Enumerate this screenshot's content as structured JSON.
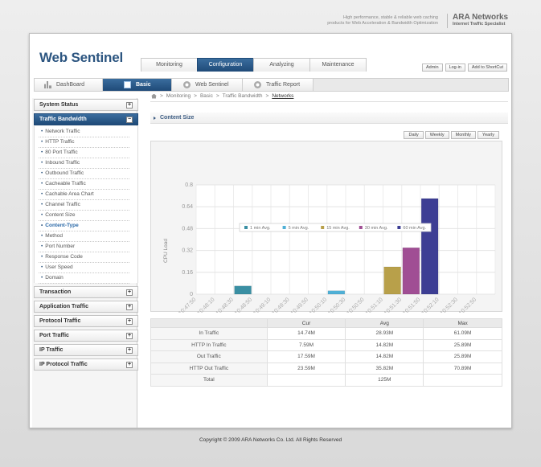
{
  "header": {
    "tagline_line1": "High performance, stable & reliable web caching",
    "tagline_line2": "products for Web Acceleration & Bandwidth Optimization",
    "brand_name": "ARA Networks",
    "brand_sub": "Internet Traffic Specialist",
    "logo": "Web Sentinel"
  },
  "main_tabs": [
    {
      "label": "Monitoring"
    },
    {
      "label": "Configuration"
    },
    {
      "label": "Analyzing"
    },
    {
      "label": "Maintenance"
    }
  ],
  "top_links": [
    {
      "label": "Admin"
    },
    {
      "label": "Log-in"
    },
    {
      "label": "Add to ShortCut"
    }
  ],
  "sub_tabs": [
    {
      "label": "DashBoard",
      "icon": "bar-chart-icon"
    },
    {
      "label": "Basic",
      "icon": "basic-icon"
    },
    {
      "label": "Web Sentinel",
      "icon": "web-sentinel-icon"
    },
    {
      "label": "Traffic Report",
      "icon": "traffic-report-icon"
    }
  ],
  "sidebar": {
    "system_status": "System Status",
    "traffic_bandwidth": "Traffic Bandwidth",
    "items": [
      "Network Traffic",
      "HTTP Traffic",
      "80 Port Traffic",
      "Inbound Traffic",
      "Outbound Traffic",
      "Cacheable Traffic",
      "Cachable Area Chart",
      "Channel Traffic",
      "Content Size",
      "Content-Type",
      "Method",
      "Port Number",
      "Response Code",
      "User Speed",
      "Domain"
    ],
    "groups": [
      "Transaction",
      "Application Traffic",
      "Protocol Traffic",
      "Port Traffic",
      "IP Traffic",
      "IP Protocol Traffic"
    ],
    "plus": "+",
    "minus": "−"
  },
  "breadcrumb": {
    "items": [
      "Monitoring",
      "Basic",
      "Traffic Bandwidth"
    ],
    "current": "Networks",
    "sep": ">"
  },
  "section_title": "Content Size",
  "period_buttons": [
    "Daily",
    "Weekly",
    "Monthly",
    "Yearly"
  ],
  "chart_data": {
    "type": "bar",
    "ylabel": "CPU Load",
    "ylim": [
      0,
      0.8
    ],
    "yticks": [
      "0",
      "0.16",
      "0.32",
      "0.48",
      "0.64",
      "0.8"
    ],
    "categories": [
      "10:47:50",
      "10:48:10",
      "10:48:30",
      "10:48:50",
      "10:49:10",
      "10:49:30",
      "10:49:50",
      "10:50:10",
      "10:50:30",
      "10:50:50",
      "10:51:10",
      "10:51:30",
      "10:51:50",
      "10:52:10",
      "10:52:30",
      "10:52:50"
    ],
    "series": [
      {
        "name": "1 min Avg.",
        "color": "#3a8fa3",
        "values": [
          0,
          0,
          0.06,
          0,
          0,
          0,
          0,
          0,
          0,
          0,
          0,
          0,
          0,
          0,
          0,
          0
        ]
      },
      {
        "name": "5 min Avg.",
        "color": "#4fb0d6",
        "values": [
          0,
          0,
          0,
          0,
          0,
          0,
          0,
          0.025,
          0,
          0,
          0,
          0,
          0,
          0,
          0,
          0
        ]
      },
      {
        "name": "15 min Avg.",
        "color": "#b8a04a",
        "values": [
          0,
          0,
          0,
          0,
          0,
          0,
          0,
          0,
          0,
          0,
          0.2,
          0,
          0,
          0,
          0,
          0
        ]
      },
      {
        "name": "30 min Avg.",
        "color": "#a04e94",
        "values": [
          0,
          0,
          0,
          0,
          0,
          0,
          0,
          0,
          0,
          0,
          0,
          0.34,
          0,
          0,
          0,
          0
        ]
      },
      {
        "name": "60 min Avg.",
        "color": "#3d3e94",
        "values": [
          0,
          0,
          0,
          0,
          0,
          0,
          0,
          0,
          0,
          0,
          0,
          0,
          0.7,
          0,
          0,
          0
        ]
      }
    ],
    "grid": true,
    "legend": "bottom"
  },
  "table": {
    "headers": [
      "",
      "Cur",
      "Avg",
      "Max"
    ],
    "rows": [
      [
        "In Traffic",
        "14.74M",
        "28.93M",
        "61.09M"
      ],
      [
        "HTTP In Traffic",
        "7.59M",
        "14.82M",
        "25.89M"
      ],
      [
        "Out Traffic",
        "17.59M",
        "14.82M",
        "25.89M"
      ],
      [
        "HTTP Out Traffic",
        "23.59M",
        "35.82M",
        "70.89M"
      ],
      [
        "Total",
        "",
        "125M",
        ""
      ]
    ]
  },
  "footer": "Copyright © 2009 ARA Networks Co. Ltd. All Rights Reserved"
}
